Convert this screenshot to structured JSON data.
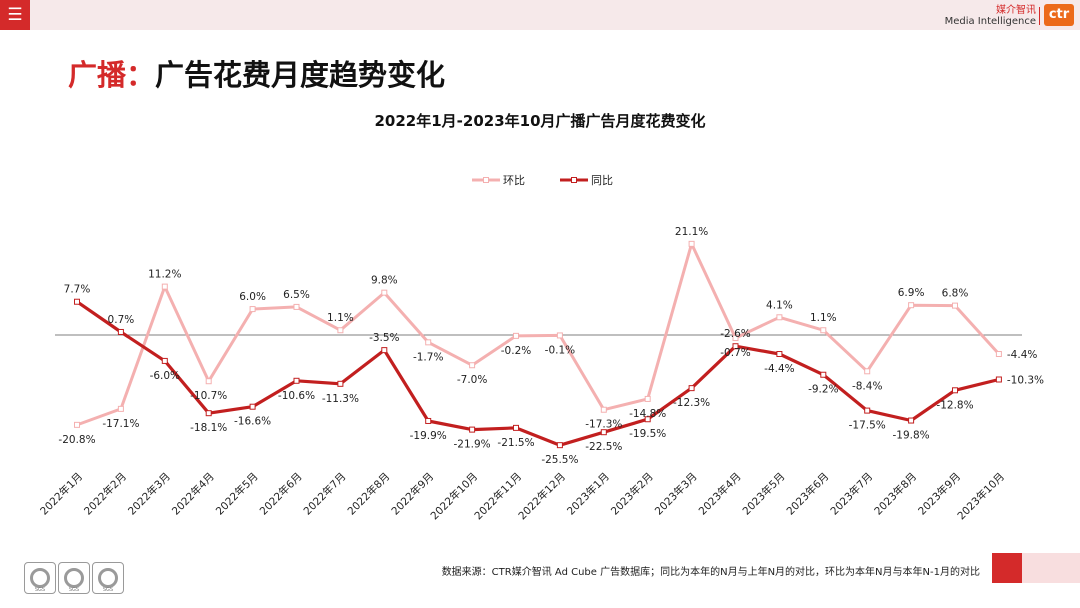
{
  "header": {
    "menu_icon": "hamburger-menu-icon",
    "brand_cn": "媒介智讯",
    "brand_en": "Media Intelligence",
    "logo_text": "ctr"
  },
  "page": {
    "title_prefix": "广播：",
    "title_main": "广告花费月度趋势变化"
  },
  "chart_data": {
    "type": "line",
    "title": "2022年1月-2023年10月广播广告月度花费变化",
    "categories": [
      "2022年1月",
      "2022年2月",
      "2022年3月",
      "2022年4月",
      "2022年5月",
      "2022年6月",
      "2022年7月",
      "2022年8月",
      "2022年9月",
      "2022年10月",
      "2022年11月",
      "2022年12月",
      "2023年1月",
      "2023年2月",
      "2023年3月",
      "2023年4月",
      "2023年5月",
      "2023年6月",
      "2023年7月",
      "2023年8月",
      "2023年9月",
      "2023年10月"
    ],
    "series": [
      {
        "name": "环比",
        "color": "#f4b0b0",
        "values": [
          -20.8,
          -17.1,
          11.2,
          -10.7,
          6.0,
          6.5,
          1.1,
          9.8,
          -1.7,
          -7.0,
          -0.2,
          -0.1,
          -17.3,
          -14.8,
          21.1,
          -0.7,
          4.1,
          1.1,
          -8.4,
          6.9,
          6.8,
          -4.4
        ],
        "labels": [
          "-20.8%",
          "-17.1%",
          "11.2%",
          "-10.7%",
          "6.0%",
          "6.5%",
          "1.1%",
          "9.8%",
          "-1.7%",
          "-7.0%",
          "-0.2%",
          "-0.1%",
          "-17.3%",
          "-14.8%",
          "21.1%",
          "-0.7%",
          "4.1%",
          "1.1%",
          "-8.4%",
          "6.9%",
          "6.8%",
          "-4.4%"
        ]
      },
      {
        "name": "同比",
        "color": "#c21f1f",
        "values": [
          7.7,
          0.7,
          -6.0,
          -18.1,
          -16.6,
          -10.6,
          -11.3,
          -3.5,
          -19.9,
          -21.9,
          -21.5,
          -25.5,
          -22.5,
          -19.5,
          -12.3,
          -2.6,
          -4.4,
          -9.2,
          -17.5,
          -19.8,
          -12.8,
          -10.3
        ],
        "labels": [
          "7.7%",
          "0.7%",
          "-6.0%",
          "-18.1%",
          "-16.6%",
          "-10.6%",
          "-11.3%",
          "-3.5%",
          "-19.9%",
          "-21.9%",
          "-21.5%",
          "-25.5%",
          "-22.5%",
          "-19.5%",
          "-12.3%",
          "-2.6%",
          "-4.4%",
          "-9.2%",
          "-17.5%",
          "-19.8%",
          "-12.8%",
          "-10.3%"
        ]
      }
    ],
    "ylim": [
      -30,
      25
    ],
    "legend_position": "top-center",
    "grid": false
  },
  "footer": {
    "note": "数据来源：CTR媒介智讯 Ad Cube 广告数据库；同比为本年的N月与上年N月的对比，环比为本年N月与本年N-1月的对比",
    "seal_text": "SGS",
    "seal_icon": "certification-seal-icon"
  }
}
